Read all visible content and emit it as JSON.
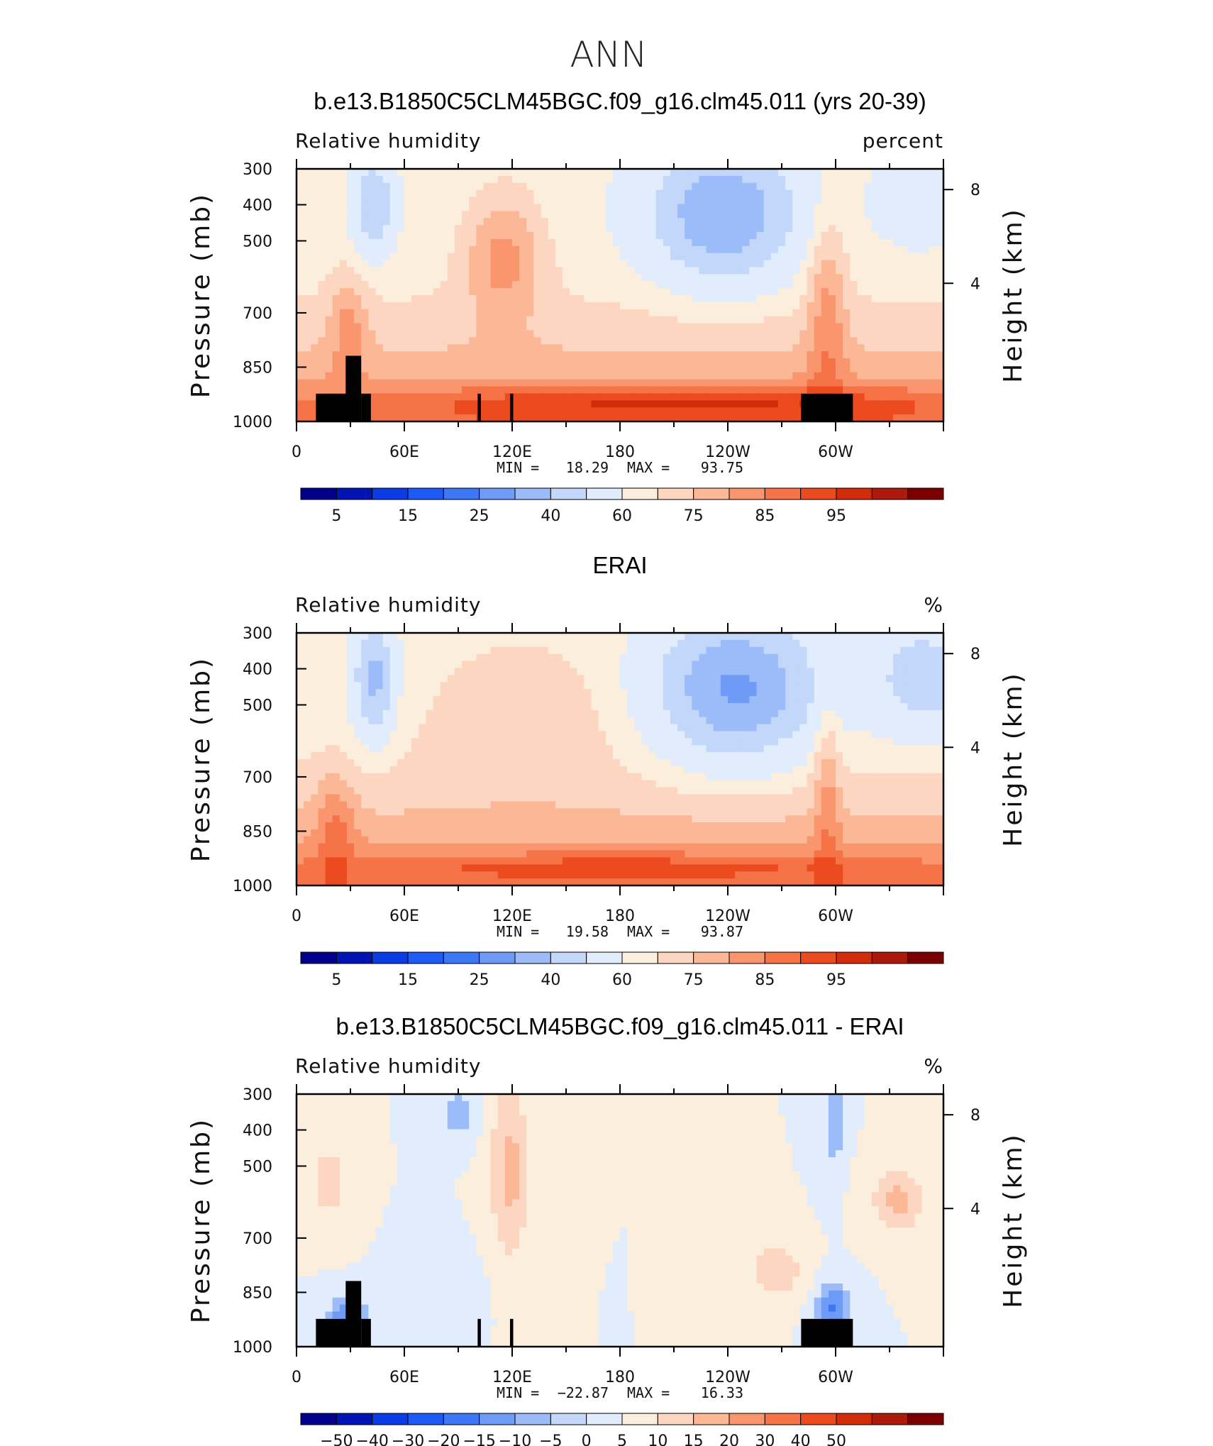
{
  "figure_title": "ANN",
  "colors": {
    "scale": [
      "#00008c",
      "#0014b4",
      "#0a3ce6",
      "#1e5af5",
      "#3c78f5",
      "#6e9bf5",
      "#9bbcf8",
      "#c3d7fa",
      "#e1ecfc",
      "#fbeedd",
      "#fcd6c0",
      "#fcb896",
      "#f9966e",
      "#f57346",
      "#eb4b1e",
      "#d22d0a",
      "#aa190a",
      "#7d0000"
    ],
    "land": "#000000"
  },
  "chart_data": [
    {
      "type": "heatmap",
      "title": "b.e13.B1850C5CLM45BGC.f09_g16.clm45.011 (yrs 20-39)",
      "left_label": "Relative humidity",
      "right_label": "percent",
      "ylabel": "Pressure (mb)",
      "y2label": "Height (km)",
      "y_ticks": [
        "300",
        "400",
        "500",
        "700",
        "850",
        "1000"
      ],
      "y2_ticks": [
        "8",
        "4"
      ],
      "x_ticks": [
        "0",
        "60E",
        "120E",
        "180",
        "120W",
        "60W"
      ],
      "min_label": "MIN =",
      "min_value": "18.29",
      "max_label": "MAX =",
      "max_value": "93.75",
      "colorbar_labels": [
        "5",
        "15",
        "25",
        "40",
        "60",
        "75",
        "85",
        "95"
      ],
      "terrain": true,
      "field": "model"
    },
    {
      "type": "heatmap",
      "title": "ERAI",
      "left_label": "Relative humidity",
      "right_label": "%",
      "ylabel": "Pressure (mb)",
      "y2label": "Height (km)",
      "y_ticks": [
        "300",
        "400",
        "500",
        "700",
        "850",
        "1000"
      ],
      "y2_ticks": [
        "8",
        "4"
      ],
      "x_ticks": [
        "0",
        "60E",
        "120E",
        "180",
        "120W",
        "60W"
      ],
      "min_label": "MIN =",
      "min_value": "19.58",
      "max_label": "MAX =",
      "max_value": "93.87",
      "colorbar_labels": [
        "5",
        "15",
        "25",
        "40",
        "60",
        "75",
        "85",
        "95"
      ],
      "terrain": false,
      "field": "obs"
    },
    {
      "type": "heatmap",
      "title": "b.e13.B1850C5CLM45BGC.f09_g16.clm45.011 - ERAI",
      "left_label": "Relative humidity",
      "right_label": "%",
      "ylabel": "Pressure (mb)",
      "y2label": "Height (km)",
      "y_ticks": [
        "300",
        "400",
        "500",
        "700",
        "850",
        "1000"
      ],
      "y2_ticks": [
        "8",
        "4"
      ],
      "x_ticks": [
        "0",
        "60E",
        "120E",
        "180",
        "120W",
        "60W"
      ],
      "min_label": "MIN =",
      "min_value": "−22.87",
      "max_label": "MAX =",
      "max_value": "16.33",
      "colorbar_labels": [
        "−50",
        "−40",
        "−30",
        "−20",
        "−15",
        "−10",
        "−5",
        "0",
        "5",
        "10",
        "15",
        "20",
        "30",
        "40",
        "50"
      ],
      "terrain": true,
      "field": "diff"
    }
  ]
}
